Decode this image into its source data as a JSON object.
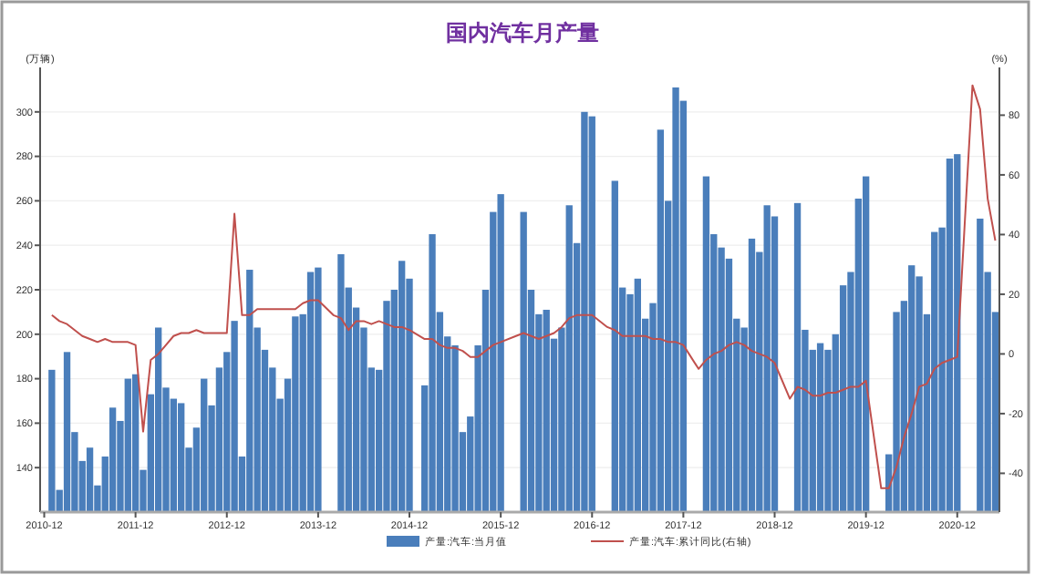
{
  "chart_data": {
    "type": "bar",
    "title": "国内汽车月产量",
    "ylabel": "(万辆)",
    "y2label": "(%)",
    "categories": [
      "2010-12",
      null,
      null,
      null,
      null,
      null,
      null,
      null,
      null,
      null,
      null,
      null,
      "2011-12",
      null,
      null,
      null,
      null,
      null,
      null,
      null,
      null,
      null,
      null,
      null,
      "2012-12",
      null,
      null,
      null,
      null,
      null,
      null,
      null,
      null,
      null,
      null,
      null,
      "2013-12",
      null,
      null,
      null,
      null,
      null,
      null,
      null,
      null,
      null,
      null,
      null,
      "2014-12",
      null,
      null,
      null,
      null,
      null,
      null,
      null,
      null,
      null,
      null,
      null,
      "2015-12",
      null,
      null,
      null,
      null,
      null,
      null,
      null,
      null,
      null,
      null,
      null,
      "2016-12",
      null,
      null,
      null,
      null,
      null,
      null,
      null,
      null,
      null,
      null,
      null,
      "2017-12",
      null,
      null,
      null,
      null,
      null,
      null,
      null,
      null,
      null,
      null,
      null,
      "2018-12",
      null,
      null,
      null,
      null,
      null,
      null,
      null,
      null,
      null,
      null,
      null,
      "2019-12",
      null,
      null,
      null,
      null,
      null,
      null,
      null,
      null,
      null,
      null,
      null,
      "2020-12",
      null,
      null,
      null,
      null,
      null
    ],
    "series": [
      {
        "name": "产量:汽车:当月值",
        "color": "#4a7ebb",
        "values": [
          null,
          184,
          130,
          192,
          156,
          143,
          149,
          132,
          145,
          167,
          161,
          180,
          182,
          139,
          173,
          203,
          176,
          171,
          169,
          149,
          158,
          180,
          168,
          185,
          192,
          206,
          145,
          229,
          203,
          193,
          185,
          171,
          180,
          208,
          209,
          228,
          230,
          null,
          null,
          236,
          221,
          212,
          203,
          185,
          184,
          215,
          220,
          233,
          225,
          null,
          177,
          245,
          210,
          199,
          195,
          156,
          163,
          195,
          220,
          255,
          263,
          null,
          null,
          255,
          220,
          209,
          211,
          198,
          203,
          258,
          241,
          300,
          298,
          null,
          null,
          269,
          221,
          218,
          225,
          207,
          214,
          292,
          260,
          311,
          305,
          null,
          null,
          271,
          245,
          239,
          234,
          207,
          203,
          243,
          237,
          258,
          253,
          null,
          null,
          259,
          202,
          193,
          196,
          193,
          200,
          222,
          228,
          261,
          271,
          null,
          null,
          146,
          210,
          215,
          231,
          226,
          209,
          246,
          248,
          279,
          281,
          null,
          null,
          252,
          228,
          210
        ]
      },
      {
        "name": "产量:汽车:累计同比(右轴)",
        "type": "line",
        "axis": "y2",
        "color": "#c0504d",
        "values": [
          null,
          13,
          11,
          10,
          8,
          6,
          5,
          4,
          5,
          4,
          4,
          4,
          3,
          -26,
          -2,
          0,
          3,
          6,
          7,
          7,
          8,
          7,
          7,
          7,
          7,
          47,
          13,
          13,
          15,
          15,
          15,
          15,
          15,
          15,
          17,
          18,
          18,
          null,
          13,
          12,
          8,
          11,
          11,
          10,
          11,
          10,
          9,
          9,
          8,
          null,
          5,
          5,
          3,
          2,
          2,
          1,
          -1,
          -1,
          1,
          3,
          4,
          null,
          6,
          7,
          6,
          5,
          6,
          7,
          9,
          12,
          13,
          13,
          13,
          null,
          9,
          8,
          6,
          6,
          6,
          6,
          5,
          5,
          4,
          4,
          3,
          null,
          -5,
          -2,
          0,
          1,
          3,
          4,
          3,
          1,
          0,
          -1,
          -3,
          null,
          -15,
          -11,
          -12,
          -14,
          -14,
          -13,
          -13,
          -12,
          -11,
          -11,
          -9,
          null,
          -45,
          -45,
          -38,
          -28,
          -20,
          -11,
          -10,
          -5,
          -3,
          -2,
          -1,
          null,
          90,
          82,
          52,
          38
        ]
      }
    ],
    "ylim": [
      120,
      320
    ],
    "yticks": [
      140,
      160,
      180,
      200,
      220,
      240,
      260,
      280,
      300
    ],
    "y2lim": [
      -53,
      96
    ],
    "y2ticks": [
      -40,
      -20,
      0,
      20,
      40,
      60,
      80
    ],
    "grid": "y",
    "legend": "bottom",
    "line_style": "solid",
    "marker": "none"
  }
}
